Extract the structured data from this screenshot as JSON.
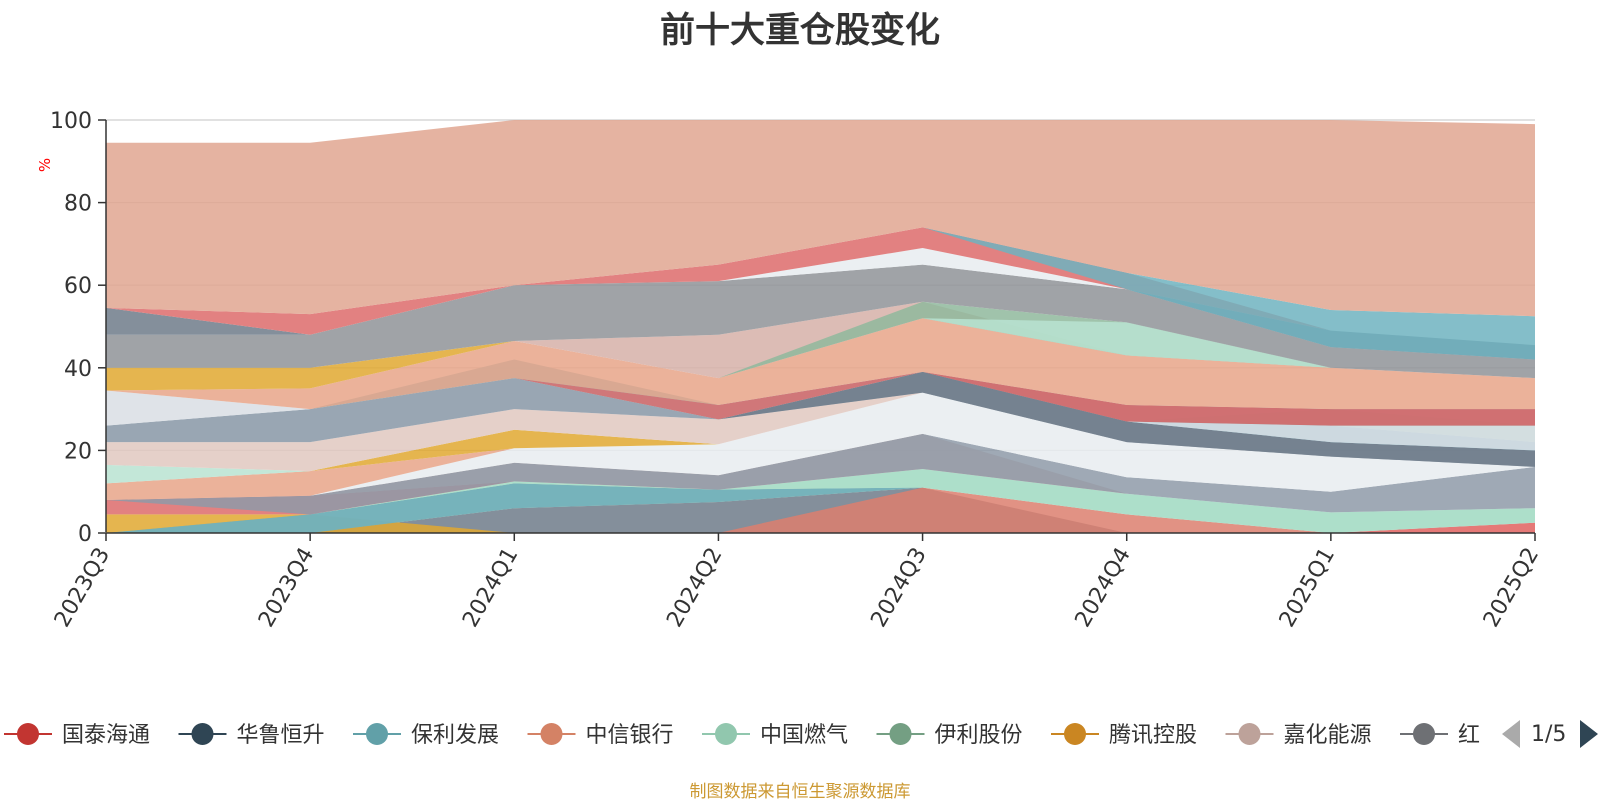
{
  "chart_data": {
    "type": "area",
    "title": "前十大重仓股变化",
    "ylabel": "%",
    "ylim": [
      0,
      100
    ],
    "y_ticks": [
      "0",
      "20",
      "40",
      "60",
      "80",
      "100"
    ],
    "categories": [
      "2023Q3",
      "2023Q4",
      "2024Q1",
      "2024Q2",
      "2024Q3",
      "2024Q4",
      "2025Q1",
      "2025Q2"
    ],
    "grid": true,
    "legend_position": "bottom",
    "legend_page": "1/5",
    "bands": [
      {
        "color": "#6e7b8a",
        "lower": [
          0,
          0,
          0,
          0,
          0,
          0,
          0,
          0
        ],
        "upper": [
          0,
          0,
          6,
          7.5,
          11,
          0,
          0,
          0
        ]
      },
      {
        "color": "#dc7f6e",
        "lower": [
          0,
          0,
          0,
          0,
          0,
          0,
          0,
          0
        ],
        "upper": [
          0,
          0,
          0,
          0,
          11,
          4.5,
          0,
          0
        ]
      },
      {
        "color": "#e0625f",
        "lower": [
          0,
          0,
          0,
          0,
          0,
          0,
          0,
          0
        ],
        "upper": [
          0,
          0,
          0,
          0,
          0,
          0,
          0,
          2.5
        ]
      },
      {
        "color": "#e0a830",
        "lower": [
          0,
          0,
          0,
          0,
          0,
          0,
          0,
          0
        ],
        "upper": [
          4.5,
          4.5,
          0,
          0,
          0,
          0,
          0,
          0
        ]
      },
      {
        "color": "#8fa88f",
        "lower": [
          0,
          0,
          6,
          7.5,
          11,
          4.5,
          0,
          2.5
        ],
        "upper": [
          0,
          4.5,
          12,
          10.5,
          11,
          4.5,
          0,
          2.5
        ]
      },
      {
        "color": "#6fb3bf",
        "lower": [
          0,
          0,
          6,
          7.5,
          11,
          4.5,
          0,
          2.5
        ],
        "upper": [
          0,
          4.5,
          12,
          10.5,
          11,
          4.5,
          0,
          2.5
        ]
      },
      {
        "color": "#9fd9c1",
        "lower": [
          0,
          4.5,
          12,
          10.5,
          11,
          4.5,
          0,
          2.5
        ],
        "upper": [
          0,
          4.5,
          12.5,
          10.5,
          15.5,
          9.5,
          5,
          6
        ]
      },
      {
        "color": "#dd6b6b",
        "lower": [
          4.5,
          4.5,
          12.5,
          10.5,
          15.5,
          9.5,
          5,
          6
        ],
        "upper": [
          8,
          9,
          12.5,
          10.5,
          15.5,
          9.5,
          5,
          6
        ]
      },
      {
        "color": "#d6b0a8",
        "lower": [
          8,
          9,
          12.5,
          10.5,
          15.5,
          9.5,
          5,
          6
        ],
        "upper": [
          8,
          9,
          17,
          14,
          24,
          9.5,
          5,
          6
        ]
      },
      {
        "color": "#8e9aa8",
        "lower": [
          8,
          4.5,
          12.5,
          10.5,
          15.5,
          9.5,
          5,
          6
        ],
        "upper": [
          8,
          9,
          17,
          14,
          24,
          13.5,
          10,
          16
        ]
      },
      {
        "color": "#e8ecf0",
        "lower": [
          8,
          9,
          17,
          14,
          24,
          13.5,
          10,
          16
        ],
        "upper": [
          8,
          9,
          20.5,
          21.5,
          34,
          22,
          18.5,
          16
        ]
      },
      {
        "color": "#e8a488",
        "lower": [
          8,
          9,
          20.5,
          21.5,
          34,
          22,
          18.5,
          16
        ],
        "upper": [
          12,
          15,
          20.5,
          21.5,
          34,
          22,
          18.5,
          16
        ]
      },
      {
        "color": "#b8e3d1",
        "lower": [
          12,
          15,
          20.5,
          21.5,
          34,
          22,
          18.5,
          16
        ],
        "upper": [
          16.5,
          15,
          20.5,
          21.5,
          34,
          22,
          18.5,
          16
        ]
      },
      {
        "color": "#e0a830",
        "lower": [
          16.5,
          15,
          20.5,
          21.5,
          34,
          22,
          18.5,
          16
        ],
        "upper": [
          16.5,
          15,
          25,
          21.5,
          34,
          22,
          18.5,
          16
        ]
      },
      {
        "color": "#e0c8c0",
        "lower": [
          16.5,
          15,
          25,
          21.5,
          34,
          22,
          18.5,
          16
        ],
        "upper": [
          22,
          22,
          30,
          27.5,
          34,
          22,
          18.5,
          16
        ]
      },
      {
        "color": "#8796a6",
        "lower": [
          22,
          22,
          30,
          27.5,
          34,
          22,
          18.5,
          16
        ],
        "upper": [
          26,
          30,
          37.5,
          27.5,
          39,
          27,
          22,
          20
        ]
      },
      {
        "color": "#6e7b8a",
        "lower": [
          26,
          30,
          37.5,
          27.5,
          34,
          22,
          18.5,
          16
        ],
        "upper": [
          26,
          30,
          37.5,
          27.5,
          39,
          27,
          22,
          20
        ]
      },
      {
        "color": "#6fb3bf",
        "lower": [
          26,
          30,
          37.5,
          27.5,
          39,
          27,
          22,
          20
        ],
        "upper": [
          26,
          30,
          42,
          31,
          39,
          27,
          26,
          22
        ]
      },
      {
        "color": "#9fd9c1",
        "lower": [
          26,
          30,
          37.5,
          27.5,
          39,
          27,
          26,
          22
        ],
        "upper": [
          26,
          30,
          37.5,
          27.5,
          39,
          27,
          30,
          26
        ]
      },
      {
        "color": "#6e7b8a",
        "lower": [
          26,
          30,
          37.5,
          27.5,
          39,
          27,
          26,
          26
        ],
        "upper": [
          26,
          30,
          37.5,
          27.5,
          39,
          31,
          30,
          30
        ]
      },
      {
        "color": "#d9dee4",
        "lower": [
          26,
          30,
          37.5,
          27.5,
          39,
          27,
          22,
          20
        ],
        "upper": [
          34.5,
          30,
          37.5,
          27.5,
          39,
          27,
          26,
          26
        ]
      },
      {
        "color": "#dd6b6b",
        "lower": [
          26,
          30,
          37.5,
          27.5,
          39,
          27,
          26,
          26
        ],
        "upper": [
          26,
          30,
          37.5,
          31,
          39,
          31,
          30,
          30
        ]
      },
      {
        "color": "#e8a488",
        "lower": [
          34.5,
          30,
          37.5,
          31,
          39,
          31,
          30,
          30
        ],
        "upper": [
          34.5,
          35,
          46.5,
          37.5,
          52,
          43,
          40,
          37.5
        ]
      },
      {
        "color": "#e0a830",
        "lower": [
          34.5,
          35,
          46.5,
          37.5,
          52,
          43,
          40,
          37.5
        ],
        "upper": [
          40,
          40,
          46.5,
          37.5,
          52,
          43,
          40,
          37.5
        ]
      },
      {
        "color": "#d6b0a8",
        "lower": [
          40,
          40,
          46.5,
          37.5,
          52,
          43,
          40,
          37.5
        ],
        "upper": [
          40,
          40,
          46.5,
          48,
          56,
          43,
          40,
          37.5
        ]
      },
      {
        "color": "#8fb89c",
        "lower": [
          40,
          40,
          46.5,
          37.5,
          52,
          43,
          40,
          37.5
        ],
        "upper": [
          40,
          40,
          46.5,
          37.5,
          56,
          51,
          40,
          37.5
        ]
      },
      {
        "color": "#b8e3d1",
        "lower": [
          40,
          40,
          46.5,
          37.5,
          52,
          43,
          40,
          37.5
        ],
        "upper": [
          40,
          40,
          46.5,
          37.5,
          52,
          51,
          40,
          37.5
        ]
      },
      {
        "color": "#8f9398",
        "lower": [
          40,
          40,
          46.5,
          48,
          56,
          51,
          40,
          37.5
        ],
        "upper": [
          48,
          48,
          60,
          61,
          65,
          59,
          45,
          42
        ]
      },
      {
        "color": "#6e7b8a",
        "lower": [
          48,
          48,
          60,
          61,
          65,
          59,
          45,
          42
        ],
        "upper": [
          54.5,
          48,
          60,
          61,
          65,
          59,
          49,
          45.5
        ]
      },
      {
        "color": "#e8ecf0",
        "lower": [
          54.5,
          48,
          60,
          61,
          65,
          59,
          49,
          45.5
        ],
        "upper": [
          54.5,
          48,
          60,
          61,
          69,
          59,
          49,
          45.5
        ]
      },
      {
        "color": "#dd6b6b",
        "lower": [
          54.5,
          48,
          60,
          61,
          69,
          59,
          49,
          45.5
        ],
        "upper": [
          54.5,
          53,
          60,
          65,
          74,
          63,
          49,
          45.5
        ]
      },
      {
        "color": "#6fb3bf",
        "lower": [
          54.5,
          53,
          60,
          65,
          74,
          59,
          45,
          42
        ],
        "upper": [
          54.5,
          53,
          60,
          65,
          74,
          63,
          54,
          52.5
        ]
      },
      {
        "color": "#e0a690",
        "lower": [
          54.5,
          53,
          60,
          65,
          74,
          63,
          54,
          52.5
        ],
        "upper": [
          94.5,
          94.5,
          100,
          100,
          100,
          100,
          100,
          99
        ]
      }
    ]
  },
  "legend": {
    "items": [
      {
        "label": "国泰海通",
        "color": "#c23531"
      },
      {
        "label": "华鲁恒升",
        "color": "#2f4554"
      },
      {
        "label": "保利发展",
        "color": "#61a0a8"
      },
      {
        "label": "中信银行",
        "color": "#d48265"
      },
      {
        "label": "中国燃气",
        "color": "#91c7ae"
      },
      {
        "label": "伊利股份",
        "color": "#749f83"
      },
      {
        "label": "腾讯控股",
        "color": "#ca8622"
      },
      {
        "label": "嘉化能源",
        "color": "#bda29a"
      },
      {
        "label": "红",
        "color": "#6e7074"
      }
    ]
  },
  "colors": {
    "unit_label": "#ff0000",
    "source_note": "#cc9933",
    "pager_active": "#2f4554",
    "pager_inactive": "#aaaaaa"
  },
  "source_note": "制图数据来自恒生聚源数据库"
}
